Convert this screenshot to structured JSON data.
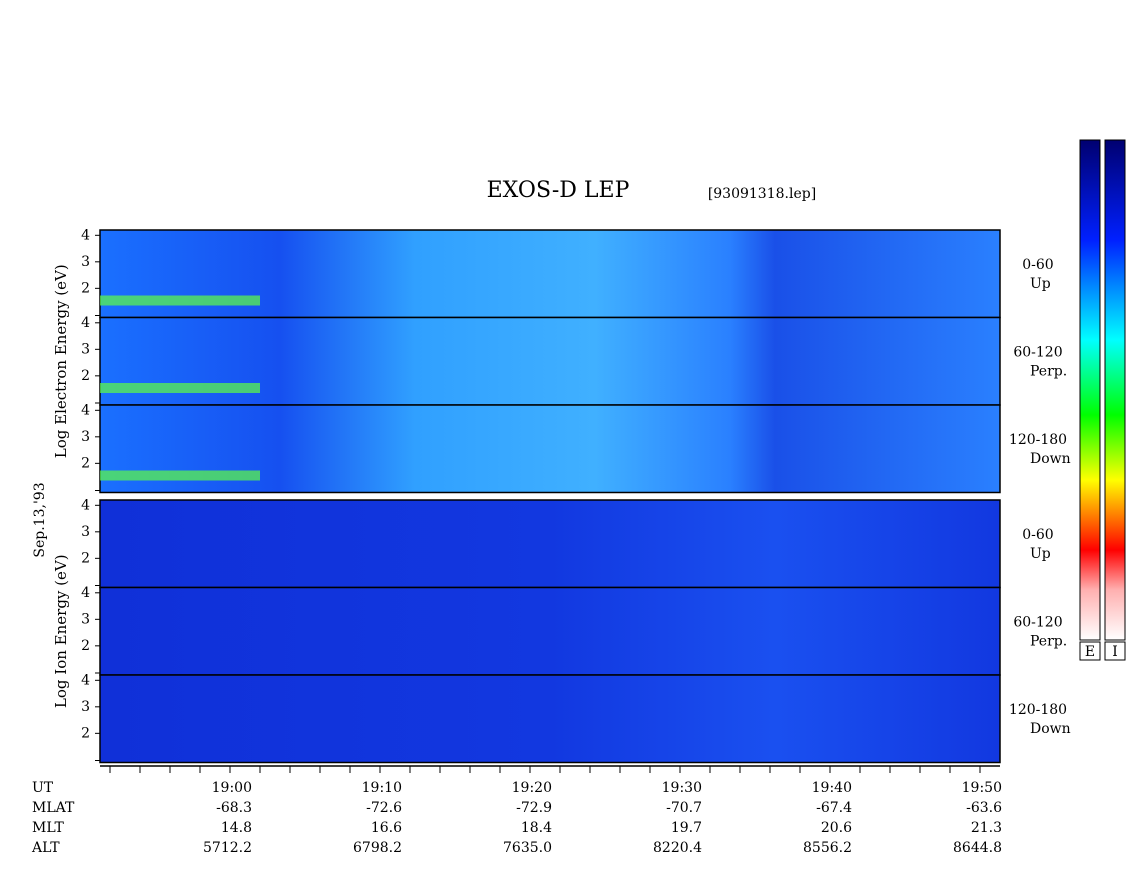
{
  "title": "EXOS-D LEP",
  "file": "[93091318.lep]",
  "date": "Sep.13,'93",
  "species": [
    {
      "label": "Log Electron Energy (eV)",
      "panels": [
        {
          "pitch": "0-60",
          "dir": "Up"
        },
        {
          "pitch": "60-120",
          "dir": "Perp."
        },
        {
          "pitch": "120-180",
          "dir": "Down"
        }
      ]
    },
    {
      "label": "Log Ion Energy (eV)",
      "panels": [
        {
          "pitch": "0-60",
          "dir": "Up"
        },
        {
          "pitch": "60-120",
          "dir": "Perp."
        },
        {
          "pitch": "120-180",
          "dir": "Down"
        }
      ]
    }
  ],
  "ylim": [
    0.9,
    4.2
  ],
  "yticks": [
    2,
    3,
    4
  ],
  "colorbars": [
    "E",
    "I"
  ],
  "axis": {
    "rows": [
      {
        "name": "UT",
        "values": [
          "19:00",
          "19:10",
          "19:20",
          "19:30",
          "19:40",
          "19:50"
        ]
      },
      {
        "name": "MLAT",
        "values": [
          "-68.3",
          "-72.6",
          "-72.9",
          "-70.7",
          "-67.4",
          "-63.6"
        ]
      },
      {
        "name": "MLT",
        "values": [
          "14.8",
          "16.6",
          "18.4",
          "19.7",
          "20.6",
          "21.3"
        ]
      },
      {
        "name": "ALT",
        "values": [
          "5712.2",
          "6798.2",
          "7635.0",
          "8220.4",
          "8556.2",
          "8644.8"
        ]
      }
    ]
  }
}
